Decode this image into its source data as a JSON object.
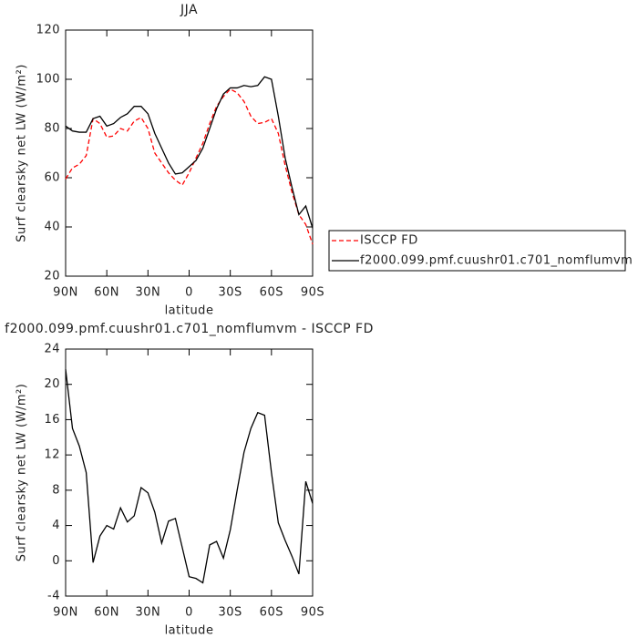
{
  "chart_data": [
    {
      "type": "line",
      "title": "JJA",
      "xlabel": "latitude",
      "ylabel": "Surf clearsky net LW (W/m²)",
      "x": [
        90,
        85,
        80,
        75,
        70,
        65,
        60,
        55,
        50,
        45,
        40,
        35,
        30,
        25,
        20,
        15,
        10,
        5,
        0,
        -5,
        -10,
        -15,
        -20,
        -25,
        -30,
        -35,
        -40,
        -45,
        -50,
        -55,
        -60,
        -65,
        -70,
        -75,
        -80,
        -85,
        -90
      ],
      "xlim": [
        90,
        -90
      ],
      "xticks": [
        {
          "value": 90,
          "label": "90N"
        },
        {
          "value": 60,
          "label": "60N"
        },
        {
          "value": 30,
          "label": "30N"
        },
        0,
        {
          "value": -30,
          "label": "30S"
        },
        {
          "value": -60,
          "label": "60S"
        },
        {
          "value": -90,
          "label": "90S"
        }
      ],
      "ylim": [
        20,
        120
      ],
      "yticks": [
        20,
        40,
        60,
        80,
        100,
        120
      ],
      "legend": "right",
      "series": [
        {
          "name": "ISCCP FD",
          "color": "#ff0000",
          "dash": "dashed",
          "values": [
            59.5,
            64,
            65.5,
            69,
            84,
            82,
            76.5,
            77,
            80,
            79,
            83,
            84.5,
            80,
            70,
            66,
            62,
            59,
            57,
            62,
            68,
            74,
            82,
            89,
            93,
            96,
            94.5,
            91,
            85,
            82,
            82.5,
            84,
            78,
            65,
            54,
            45,
            41,
            33
          ]
        },
        {
          "name": "f2000.099.pmf.cuushr01.c701_nomflumvm",
          "color": "#000000",
          "dash": "solid",
          "values": [
            81,
            79,
            78.5,
            78.5,
            84,
            85,
            81,
            82,
            84.5,
            86,
            89,
            89,
            86,
            78,
            72,
            66,
            61.5,
            62,
            64.5,
            67,
            72,
            80,
            88,
            94,
            96.5,
            96.5,
            97.5,
            97,
            97.5,
            101,
            100,
            85,
            68,
            56,
            45,
            48.5,
            39.5
          ]
        }
      ]
    },
    {
      "type": "line",
      "title": "f2000.099.pmf.cuushr01.c701_nomflumvm - ISCCP FD",
      "xlabel": "latitude",
      "ylabel": "Surf clearsky net LW (W/m²)",
      "x": [
        90,
        85,
        80,
        75,
        70,
        65,
        60,
        55,
        50,
        45,
        40,
        35,
        30,
        25,
        20,
        15,
        10,
        5,
        0,
        -5,
        -10,
        -15,
        -20,
        -25,
        -30,
        -35,
        -40,
        -45,
        -50,
        -55,
        -60,
        -65,
        -70,
        -75,
        -80,
        -85,
        -90
      ],
      "xlim": [
        90,
        -90
      ],
      "xticks": [
        {
          "value": 90,
          "label": "90N"
        },
        {
          "value": 60,
          "label": "60N"
        },
        {
          "value": 30,
          "label": "30N"
        },
        0,
        {
          "value": -30,
          "label": "30S"
        },
        {
          "value": -60,
          "label": "60S"
        },
        {
          "value": -90,
          "label": "90S"
        }
      ],
      "ylim": [
        -4,
        24
      ],
      "yticks": [
        -4,
        0,
        4,
        8,
        12,
        16,
        20,
        24
      ],
      "series": [
        {
          "color": "#000000",
          "dash": "solid",
          "values": [
            21.7,
            15,
            13,
            10,
            -0.2,
            2.8,
            4,
            3.6,
            6,
            4.4,
            5.1,
            8.3,
            7.7,
            5.5,
            2,
            4.5,
            4.8,
            1.5,
            -1.8,
            -2,
            -2.5,
            1.8,
            2.2,
            0.3,
            3.5,
            8,
            12.3,
            15,
            16.8,
            16.5,
            10,
            4.3,
            2.3,
            0.5,
            -1.5,
            9,
            6.5
          ]
        }
      ]
    }
  ]
}
